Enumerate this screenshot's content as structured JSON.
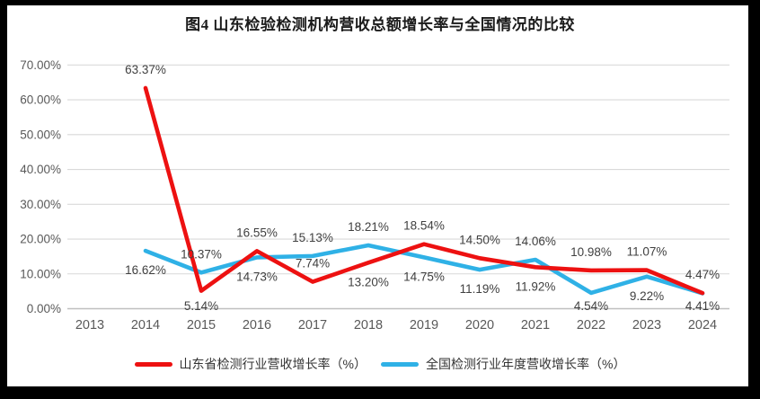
{
  "chart_data": {
    "type": "line",
    "title": "图4  山东检验检测机构营收总额增长率与全国情况的比较",
    "x_axis": {
      "categories": [
        "2013",
        "2014",
        "2015",
        "2016",
        "2017",
        "2018",
        "2019",
        "2020",
        "2021",
        "2022",
        "2023",
        "2024"
      ]
    },
    "y_axis": {
      "min": 0,
      "max": 70,
      "tick_labels": [
        "0.00%",
        "10.00%",
        "20.00%",
        "30.00%",
        "40.00%",
        "50.00%",
        "60.00%",
        "70.00%"
      ],
      "tick_values": [
        0,
        10,
        20,
        30,
        40,
        50,
        60,
        70
      ]
    },
    "grid": true,
    "legend_position": "bottom",
    "colors": {
      "grid_line": "#d9d9d9",
      "axis_line": "#bfbfbf",
      "tick_label": "#595959",
      "data_label": "#404040"
    },
    "series": [
      {
        "key": "shandong",
        "name": "山东省检测行业营收增长率（%）",
        "color": "#ed1111",
        "values": [
          null,
          63.37,
          5.14,
          16.55,
          7.74,
          13.2,
          18.54,
          14.5,
          11.92,
          10.98,
          11.07,
          4.47
        ],
        "labels": [
          "",
          "63.37%",
          "5.14%",
          "16.55%",
          "7.74%",
          "13.20%",
          "18.54%",
          "14.50%",
          "11.92%",
          "10.98%",
          "11.07%",
          "4.47%"
        ],
        "label_pos": [
          "",
          "above",
          "below",
          "above",
          "above",
          "below",
          "above",
          "above",
          "below",
          "above",
          "above",
          "above"
        ]
      },
      {
        "key": "national",
        "name": "全国检测行业年度营收增长率（%）",
        "color": "#2fb1e6",
        "values": [
          null,
          16.62,
          10.37,
          14.73,
          15.13,
          18.21,
          14.75,
          11.19,
          14.06,
          4.54,
          9.22,
          4.41
        ],
        "labels": [
          "",
          "16.62%",
          "10.37%",
          "14.73%",
          "15.13%",
          "18.21%",
          "14.75%",
          "11.19%",
          "14.06%",
          "4.54%",
          "9.22%",
          "4.41%"
        ],
        "label_pos": [
          "",
          "below",
          "above",
          "below",
          "above",
          "above",
          "below",
          "below",
          "above",
          "below",
          "below",
          "below"
        ]
      }
    ]
  }
}
